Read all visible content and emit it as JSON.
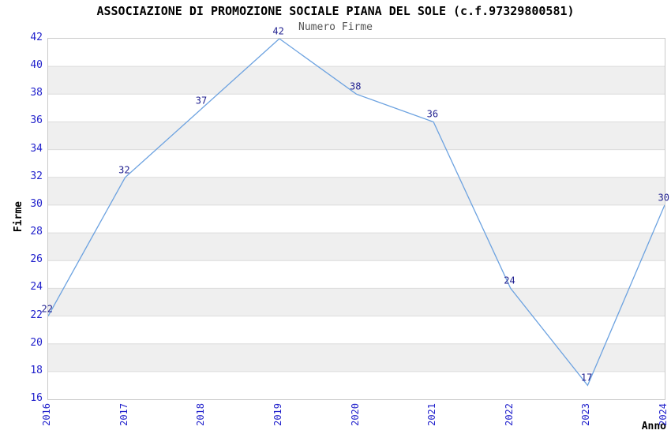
{
  "chart_data": {
    "type": "line",
    "title": "ASSOCIAZIONE DI PROMOZIONE SOCIALE PIANA DEL SOLE (c.f.97329800581)",
    "subtitle": "Numero Firme",
    "xlabel": "Anno",
    "ylabel": "Firme",
    "categories": [
      "2016",
      "2017",
      "2018",
      "2019",
      "2020",
      "2021",
      "2022",
      "2023",
      "2024"
    ],
    "values": [
      22,
      32,
      37,
      42,
      38,
      36,
      24,
      17,
      30
    ],
    "ylim": [
      16,
      42
    ],
    "ytick_step": 2,
    "grid": true,
    "legend_position": "none",
    "colors": {
      "line": "#6ca2e0",
      "tick_label": "#2222cc",
      "data_label": "#1f1f8f",
      "band": "#efefef",
      "gridline": "#dcdcdc",
      "border": "#c9c9c9",
      "title": "#000000",
      "subtitle": "#555555",
      "background": "#ffffff"
    }
  }
}
